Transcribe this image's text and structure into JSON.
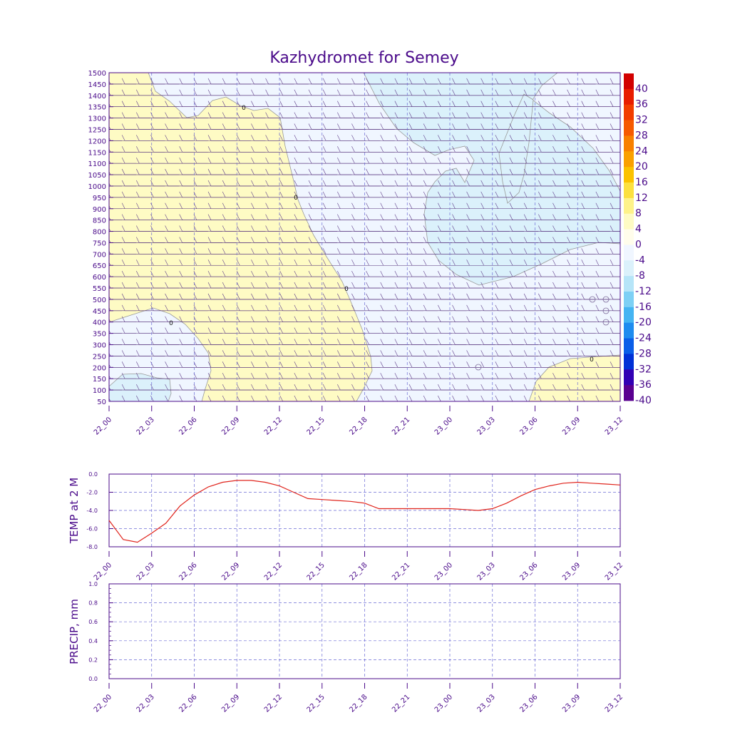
{
  "title": "Kazhydromet for Semey",
  "time_labels": [
    "22_00",
    "22_03",
    "22_06",
    "22_09",
    "22_12",
    "22_15",
    "22_18",
    "22_21",
    "23_00",
    "23_03",
    "23_06",
    "23_09",
    "23_12"
  ],
  "chart_data": [
    {
      "type": "heatmap",
      "name": "cross-section",
      "y_axis": {
        "ticks": [
          50,
          100,
          150,
          200,
          250,
          300,
          350,
          400,
          450,
          500,
          550,
          600,
          650,
          700,
          750,
          800,
          850,
          900,
          950,
          1000,
          1050,
          1100,
          1150,
          1200,
          1250,
          1300,
          1350,
          1400,
          1450,
          1500
        ],
        "range": [
          50,
          1500
        ]
      },
      "x_axis": {
        "range_hours": [
          0,
          36
        ]
      },
      "colorbar": {
        "labels": [
          "40",
          "36",
          "32",
          "28",
          "24",
          "20",
          "16",
          "12",
          "8",
          "4",
          "0",
          "-4",
          "-8",
          "-12",
          "-16",
          "-20",
          "-24",
          "-28",
          "-32",
          "-36",
          "-40"
        ],
        "colors": [
          "#d20000",
          "#e81c00",
          "#f23c00",
          "#f65a00",
          "#f88000",
          "#faa000",
          "#fbc200",
          "#fce040",
          "#fef28a",
          "#fefbc4",
          "#fffdeb",
          "#f0f6ff",
          "#dbf1fb",
          "#b6e5f8",
          "#7dd0f5",
          "#45b4f2",
          "#1f8cef",
          "#0a5ee8",
          "#0030d6",
          "#3200b4",
          "#5a0090"
        ]
      },
      "contour_labels": [
        "0",
        "0",
        "0",
        "0",
        "0"
      ],
      "regions": [
        {
          "name": "warm-zone-left",
          "value_range": [
            0,
            4
          ],
          "color": "#fefbc4"
        },
        {
          "name": "cold-zone-upper-right",
          "value_range": [
            -8,
            -4
          ],
          "color": "#dbf1fb"
        },
        {
          "name": "warm-zone-lower-right",
          "value_range": [
            0,
            4
          ],
          "color": "#fefbc4"
        },
        {
          "name": "cold-pocket-lower-left",
          "value_range": [
            -8,
            -4
          ],
          "color": "#dbf1fb"
        }
      ]
    },
    {
      "type": "line",
      "name": "temp-2m",
      "ylabel": "TEMP at 2 M",
      "ylim": [
        -8.0,
        0.0
      ],
      "y_ticks": [
        "0.0",
        "-2.0",
        "-4.0",
        "-6.0",
        "-8.0"
      ],
      "x_hours": [
        0,
        1,
        2,
        3,
        4,
        5,
        6,
        7,
        8,
        9,
        10,
        11,
        12,
        13,
        14,
        15,
        16,
        17,
        18,
        19,
        20,
        21,
        22,
        23,
        24,
        25,
        26,
        27,
        28,
        29,
        30,
        31,
        32,
        33,
        34,
        35,
        36
      ],
      "values": [
        -5.1,
        -7.2,
        -7.5,
        -6.5,
        -5.4,
        -3.5,
        -2.3,
        -1.4,
        -0.9,
        -0.7,
        -0.7,
        -0.9,
        -1.3,
        -2.0,
        -2.7,
        -2.8,
        -2.9,
        -3.0,
        -3.2,
        -3.8,
        -3.8,
        -3.8,
        -3.8,
        -3.8,
        -3.8,
        -3.9,
        -4.0,
        -3.8,
        -3.2,
        -2.4,
        -1.7,
        -1.3,
        -1.0,
        -0.9,
        -1.0,
        -1.1,
        -1.2
      ],
      "color": "#e0241c"
    },
    {
      "type": "line",
      "name": "precip",
      "ylabel": "PRECIP, mm",
      "ylim": [
        0.0,
        1.0
      ],
      "y_ticks": [
        "1.0",
        "0.8",
        "0.6",
        "0.4",
        "0.2",
        "0.0"
      ],
      "x_hours": [],
      "values": []
    }
  ]
}
